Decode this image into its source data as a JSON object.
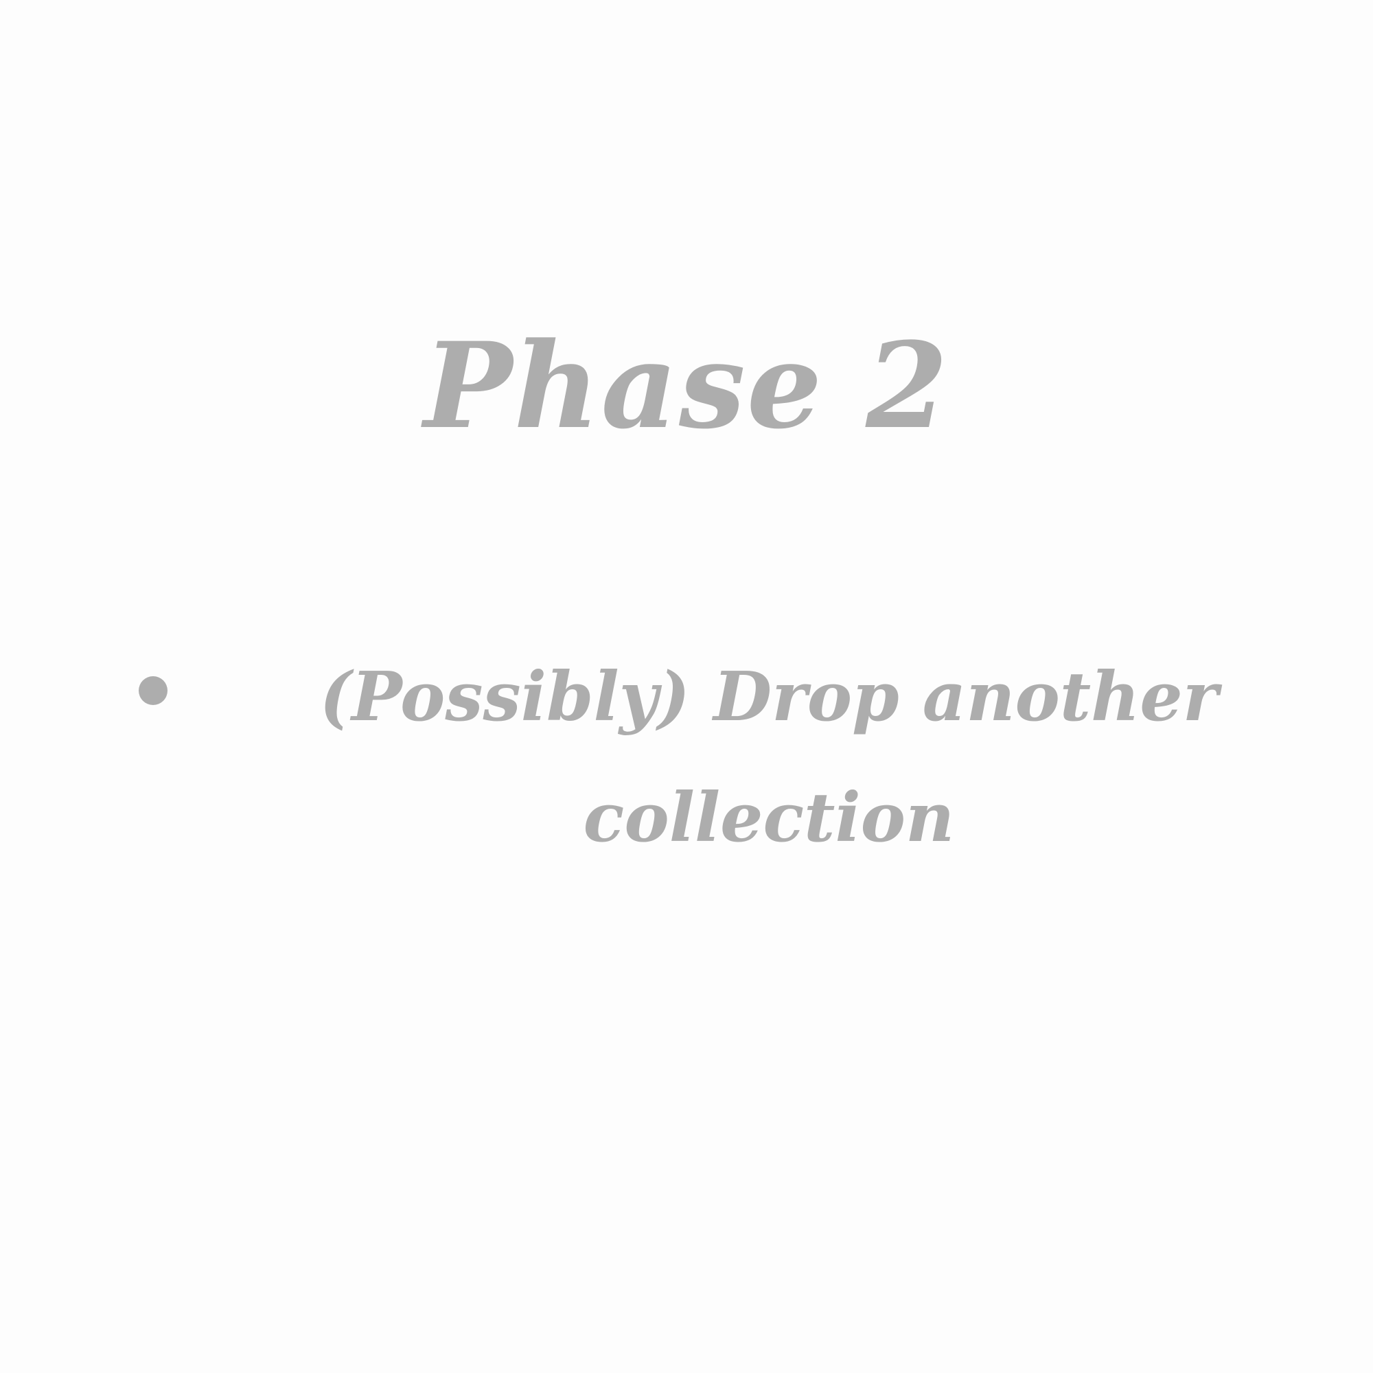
{
  "slide": {
    "title": "Phase 2",
    "bullets": [
      {
        "text": "(Possibly) Drop another collection"
      }
    ]
  },
  "colors": {
    "background": "#fdfdfd",
    "text": "#adadad"
  }
}
